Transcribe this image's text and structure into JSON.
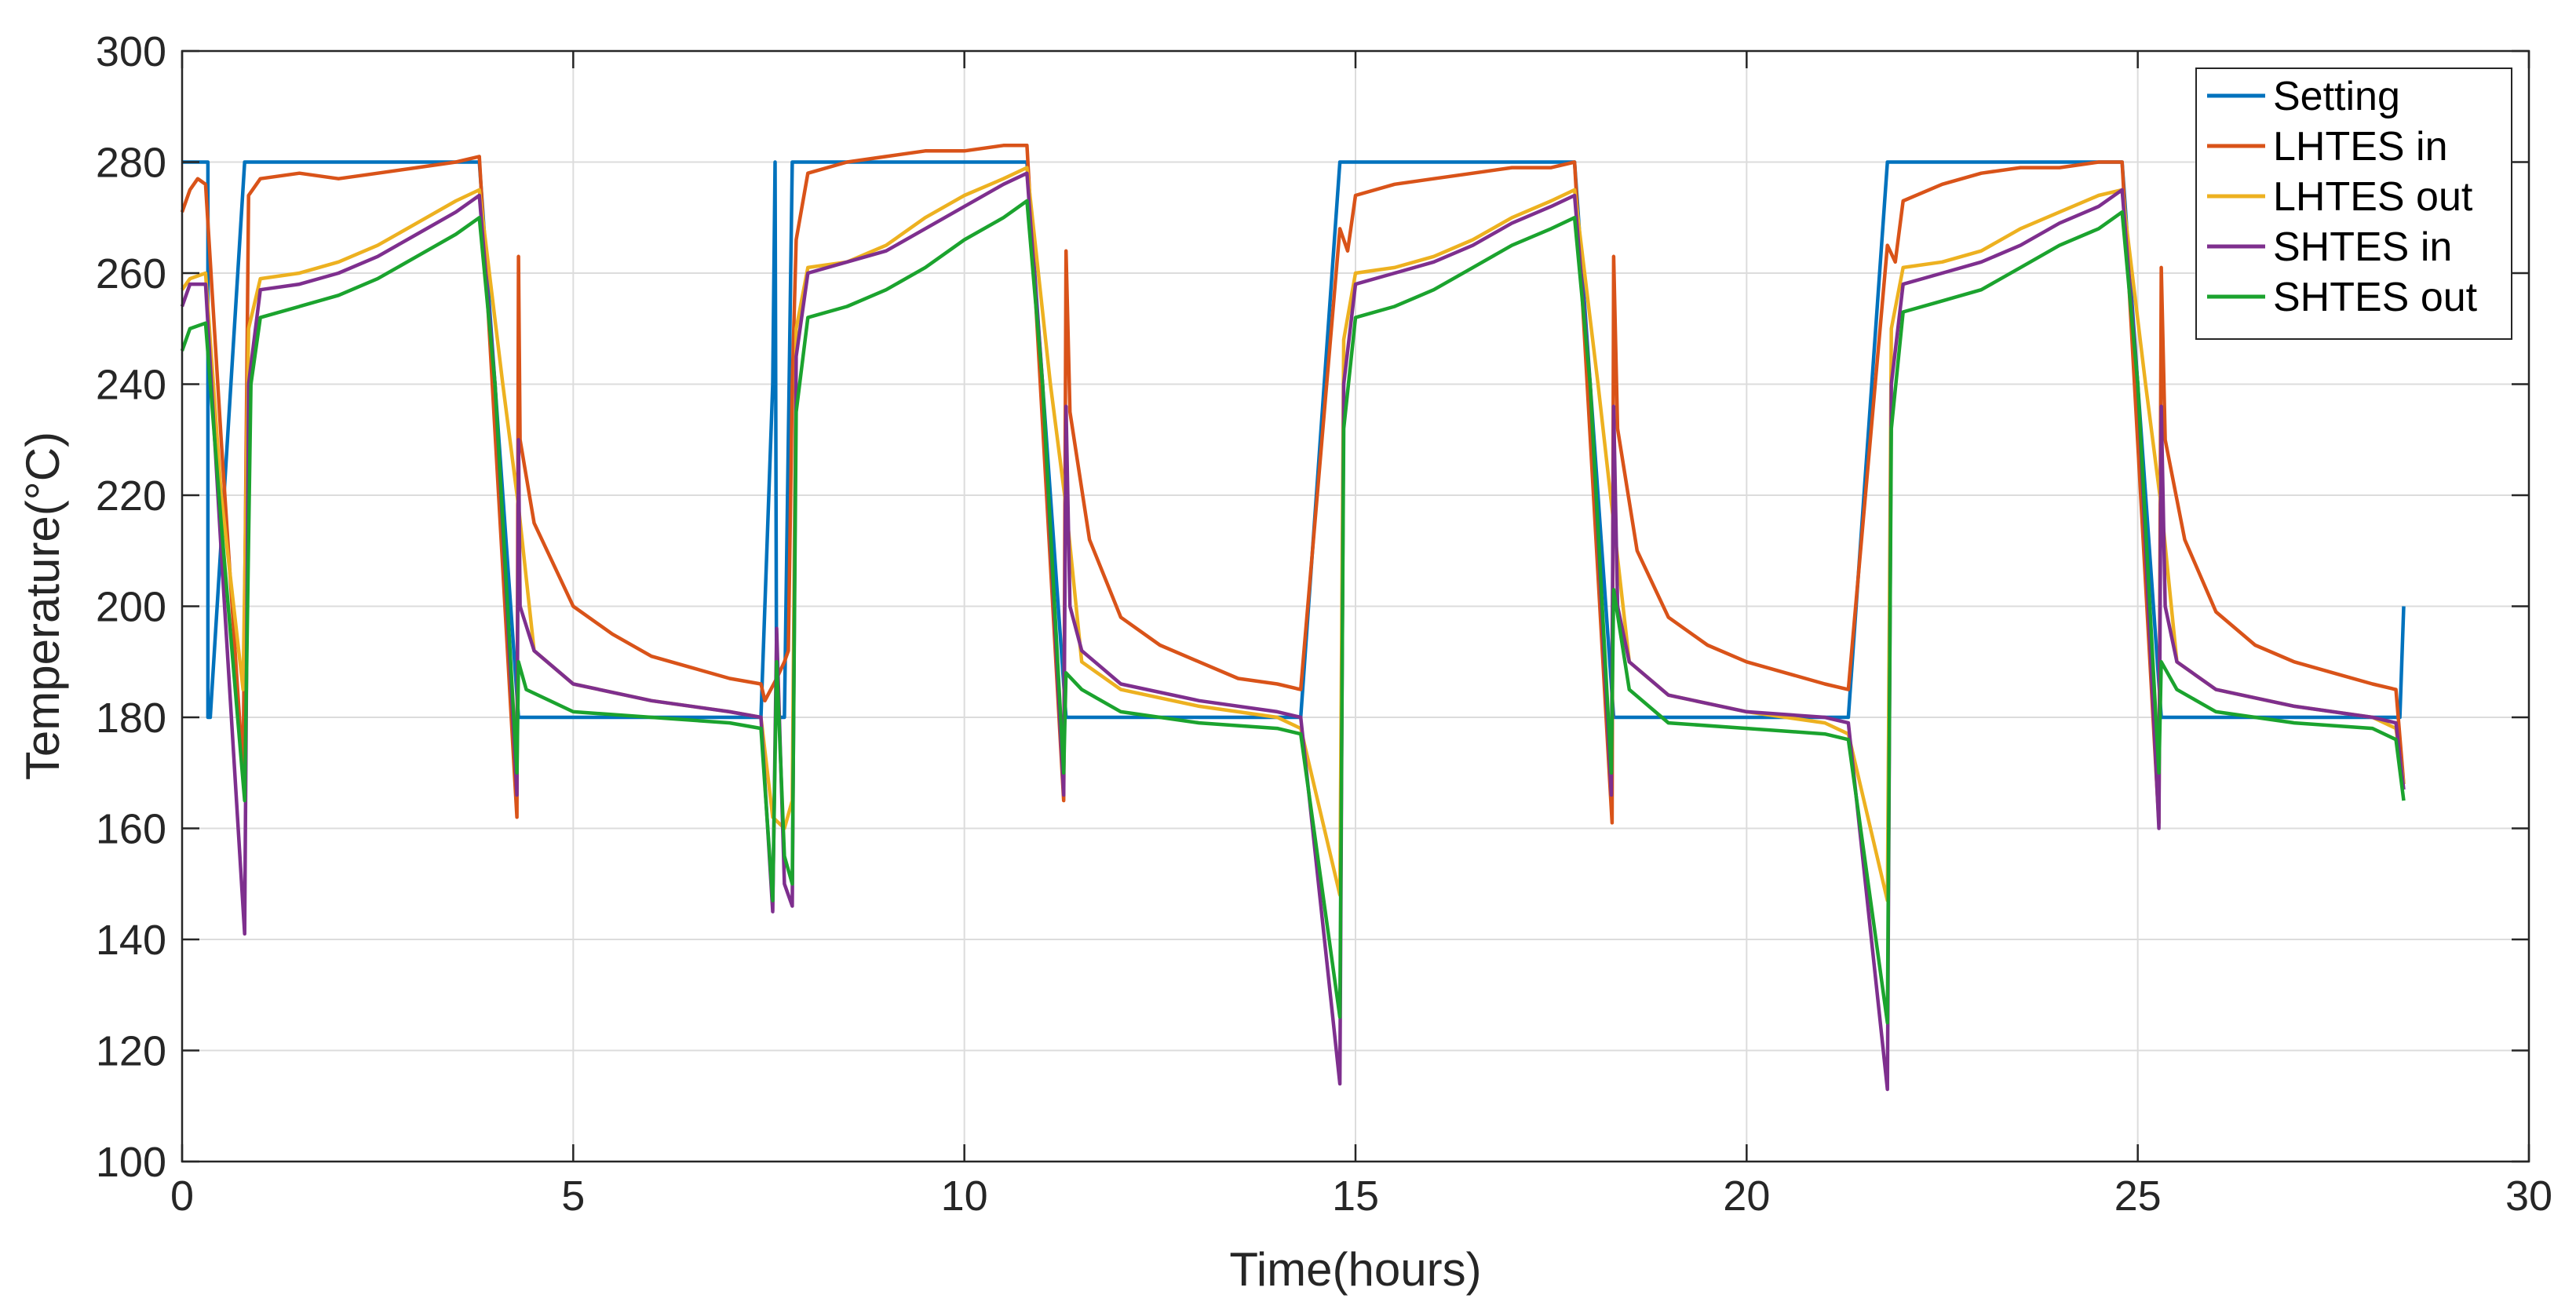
{
  "chart_data": {
    "type": "line",
    "title": "",
    "xlabel": "Time(hours)",
    "ylabel": "Temperature(°C)",
    "xlim": [
      0,
      30
    ],
    "ylim": [
      100,
      300
    ],
    "xticks": [
      0,
      5,
      10,
      15,
      20,
      25,
      30
    ],
    "yticks": [
      100,
      120,
      140,
      160,
      180,
      200,
      220,
      240,
      260,
      280,
      300
    ],
    "grid": true,
    "legend_position": "top-right",
    "series": [
      {
        "name": "Setting",
        "color": "#0072BD",
        "x": [
          0,
          0.33,
          0.33,
          0.36,
          0.8,
          3.8,
          4.3,
          7.4,
          7.55,
          7.58,
          7.6,
          7.62,
          7.7,
          7.8,
          10.8,
          11.3,
          14.3,
          14.8,
          17.8,
          18.3,
          21.3,
          21.8,
          24.8,
          25.3,
          28.35,
          28.4
        ],
        "y": [
          280,
          280,
          180,
          180,
          280,
          280,
          180,
          180,
          240,
          280,
          180,
          180,
          180,
          280,
          280,
          180,
          180,
          280,
          280,
          180,
          180,
          280,
          280,
          180,
          180,
          200
        ]
      },
      {
        "name": "LHTES in",
        "color": "#D95319",
        "x": [
          0,
          0.1,
          0.2,
          0.3,
          0.5,
          0.78,
          0.85,
          0.9,
          1.0,
          1.5,
          2.0,
          2.5,
          3.0,
          3.5,
          3.8,
          4.28,
          4.3,
          4.32,
          4.5,
          5.0,
          5.5,
          6.0,
          6.5,
          7.0,
          7.4,
          7.45,
          7.6,
          7.7,
          7.75,
          7.8,
          7.85,
          8.0,
          8.5,
          9.0,
          9.5,
          10.0,
          10.5,
          10.8,
          11.27,
          11.3,
          11.35,
          11.6,
          12.0,
          12.5,
          13.0,
          13.5,
          14.0,
          14.3,
          14.8,
          14.9,
          15.0,
          15.5,
          16.0,
          16.5,
          17.0,
          17.5,
          17.8,
          18.28,
          18.3,
          18.35,
          18.6,
          19.0,
          19.5,
          20.0,
          20.5,
          21.0,
          21.3,
          21.8,
          21.9,
          22.0,
          22.5,
          23.0,
          23.5,
          24.0,
          24.5,
          24.8,
          25.27,
          25.3,
          25.35,
          25.6,
          26.0,
          26.5,
          27.0,
          27.5,
          28.0,
          28.3,
          28.4
        ],
        "y": [
          271,
          275,
          277,
          276,
          230,
          170,
          274,
          275,
          277,
          278,
          277,
          278,
          279,
          280,
          281,
          162,
          263,
          230,
          215,
          200,
          195,
          191,
          189,
          187,
          186,
          183,
          187,
          190,
          192,
          240,
          266,
          278,
          280,
          281,
          282,
          282,
          283,
          283,
          165,
          264,
          235,
          212,
          198,
          193,
          190,
          187,
          186,
          185,
          268,
          264,
          274,
          276,
          277,
          278,
          279,
          279,
          280,
          161,
          263,
          232,
          210,
          198,
          193,
          190,
          188,
          186,
          185,
          265,
          262,
          273,
          276,
          278,
          279,
          279,
          280,
          280,
          161,
          261,
          230,
          212,
          199,
          193,
          190,
          188,
          186,
          185,
          168
        ]
      },
      {
        "name": "LHTES out",
        "color": "#EDB120",
        "x": [
          0,
          0.1,
          0.3,
          0.5,
          0.78,
          0.85,
          1.0,
          1.5,
          2.0,
          2.5,
          3.0,
          3.5,
          3.8,
          4.1,
          4.3,
          4.5,
          5.0,
          6.0,
          7.0,
          7.4,
          7.55,
          7.7,
          7.8,
          7.85,
          8.0,
          8.5,
          9.0,
          9.5,
          10.0,
          10.5,
          10.8,
          11.1,
          11.3,
          11.5,
          12.0,
          13.0,
          14.0,
          14.3,
          14.8,
          14.85,
          15.0,
          15.5,
          16.0,
          16.5,
          17.0,
          17.5,
          17.8,
          18.1,
          18.3,
          18.5,
          19.0,
          20.0,
          21.0,
          21.3,
          21.8,
          21.85,
          22.0,
          22.5,
          23.0,
          23.5,
          24.0,
          24.5,
          24.8,
          25.1,
          25.3,
          25.5,
          26.0,
          27.0,
          28.0,
          28.3,
          28.4
        ],
        "y": [
          257,
          259,
          260,
          220,
          185,
          250,
          259,
          260,
          262,
          265,
          269,
          273,
          275,
          240,
          218,
          192,
          186,
          183,
          181,
          180,
          162,
          160,
          165,
          250,
          261,
          262,
          265,
          270,
          274,
          277,
          279,
          240,
          218,
          190,
          185,
          182,
          180,
          178,
          148,
          248,
          260,
          261,
          263,
          266,
          270,
          273,
          275,
          240,
          215,
          190,
          184,
          181,
          179,
          177,
          147,
          250,
          261,
          262,
          264,
          268,
          271,
          274,
          275,
          240,
          218,
          190,
          185,
          182,
          180,
          178,
          168
        ]
      },
      {
        "name": "SHTES in",
        "color": "#7E2F8E",
        "x": [
          0,
          0.1,
          0.3,
          0.5,
          0.8,
          0.85,
          1.0,
          1.5,
          2.0,
          2.5,
          3.0,
          3.5,
          3.8,
          4.0,
          4.28,
          4.3,
          4.32,
          4.5,
          5.0,
          6.0,
          7.0,
          7.4,
          7.55,
          7.6,
          7.7,
          7.8,
          7.85,
          8.0,
          8.5,
          9.0,
          9.5,
          10.0,
          10.5,
          10.8,
          11.0,
          11.27,
          11.3,
          11.35,
          11.5,
          12.0,
          13.0,
          14.0,
          14.3,
          14.8,
          14.85,
          15.0,
          15.5,
          16.0,
          16.5,
          17.0,
          17.5,
          17.8,
          18.0,
          18.27,
          18.3,
          18.35,
          18.5,
          19.0,
          20.0,
          21.0,
          21.3,
          21.8,
          21.85,
          22.0,
          22.5,
          23.0,
          23.5,
          24.0,
          24.5,
          24.8,
          25.0,
          25.27,
          25.3,
          25.35,
          25.5,
          26.0,
          27.0,
          28.0,
          28.3,
          28.4
        ],
        "y": [
          254,
          258,
          258,
          210,
          141,
          240,
          257,
          258,
          260,
          263,
          267,
          271,
          274,
          240,
          166,
          230,
          200,
          192,
          186,
          183,
          181,
          180,
          145,
          196,
          150,
          146,
          245,
          260,
          262,
          264,
          268,
          272,
          276,
          278,
          240,
          166,
          236,
          200,
          192,
          186,
          183,
          181,
          180,
          114,
          240,
          258,
          260,
          262,
          265,
          269,
          272,
          274,
          240,
          166,
          236,
          200,
          190,
          184,
          181,
          180,
          179,
          113,
          240,
          258,
          260,
          262,
          265,
          269,
          272,
          275,
          240,
          160,
          236,
          200,
          190,
          185,
          182,
          180,
          179,
          167
        ]
      },
      {
        "name": "SHTES out",
        "color": "#1BA32E",
        "x": [
          0,
          0.1,
          0.3,
          0.5,
          0.8,
          0.88,
          1.0,
          1.5,
          2.0,
          2.5,
          3.0,
          3.5,
          3.8,
          4.0,
          4.28,
          4.3,
          4.4,
          5.0,
          6.0,
          7.0,
          7.4,
          7.55,
          7.6,
          7.7,
          7.8,
          7.85,
          8.0,
          8.5,
          9.0,
          9.5,
          10.0,
          10.5,
          10.8,
          11.0,
          11.27,
          11.3,
          11.5,
          12.0,
          13.0,
          14.0,
          14.3,
          14.8,
          14.85,
          15.0,
          15.5,
          16.0,
          16.5,
          17.0,
          17.5,
          17.8,
          18.0,
          18.27,
          18.3,
          18.5,
          19.0,
          20.0,
          21.0,
          21.3,
          21.8,
          21.85,
          22.0,
          22.5,
          23.0,
          23.5,
          24.0,
          24.5,
          24.8,
          25.0,
          25.27,
          25.3,
          25.5,
          26.0,
          27.0,
          28.0,
          28.3,
          28.4
        ],
        "y": [
          246,
          250,
          251,
          215,
          165,
          240,
          252,
          254,
          256,
          259,
          263,
          267,
          270,
          240,
          170,
          190,
          185,
          181,
          180,
          179,
          178,
          147,
          190,
          155,
          150,
          235,
          252,
          254,
          257,
          261,
          266,
          270,
          273,
          240,
          170,
          188,
          185,
          181,
          179,
          178,
          177,
          126,
          232,
          252,
          254,
          257,
          261,
          265,
          268,
          270,
          240,
          170,
          203,
          185,
          179,
          178,
          177,
          176,
          125,
          232,
          253,
          255,
          257,
          261,
          265,
          268,
          271,
          240,
          170,
          190,
          185,
          181,
          179,
          178,
          176,
          165
        ]
      }
    ]
  }
}
